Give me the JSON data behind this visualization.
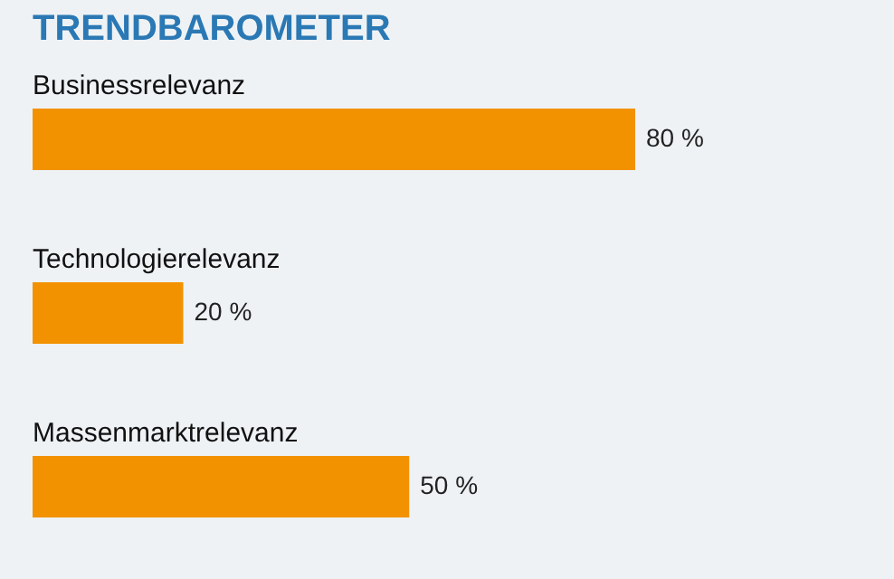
{
  "chart_data": {
    "type": "bar",
    "orientation": "horizontal",
    "title": "TRENDBAROMETER",
    "categories": [
      "Businessrelevanz",
      "Technologierelevanz",
      "Massenmarktrelevanz"
    ],
    "values": [
      80,
      20,
      50
    ],
    "value_labels": [
      "80 %",
      "20 %",
      "50 %"
    ],
    "color": "#f39200"
  }
}
